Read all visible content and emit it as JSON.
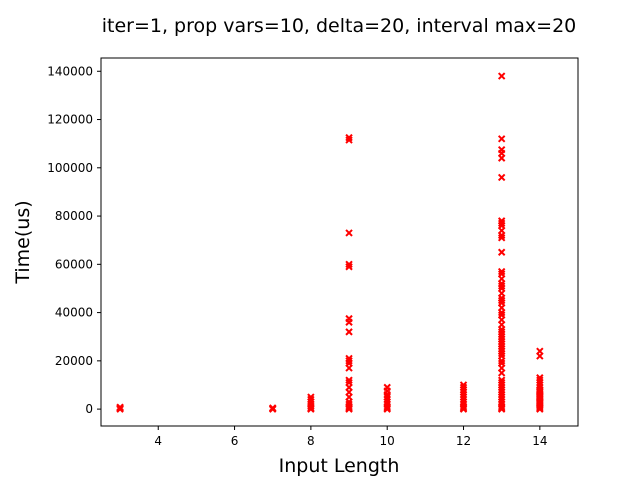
{
  "chart_data": {
    "type": "scatter",
    "title": "iter=1, prop vars=10, delta=20, interval max=20",
    "xlabel": "Input Length",
    "ylabel": "Time(us)",
    "xlim": [
      2.5,
      15.0
    ],
    "ylim": [
      -7000,
      145500
    ],
    "xticks": [
      4,
      6,
      8,
      10,
      12,
      14
    ],
    "yticks": [
      0,
      20000,
      40000,
      60000,
      80000,
      100000,
      120000,
      140000
    ],
    "grid": false,
    "marker": "x",
    "marker_color": "#ff0000",
    "series": [
      {
        "points": [
          [
            3,
            0
          ],
          [
            3,
            200
          ],
          [
            3,
            500
          ],
          [
            3,
            800
          ],
          [
            7,
            0
          ],
          [
            7,
            200
          ],
          [
            7,
            500
          ],
          [
            8,
            0
          ],
          [
            8,
            500
          ],
          [
            8,
            1200
          ],
          [
            8,
            2000
          ],
          [
            8,
            3000
          ],
          [
            8,
            4000
          ],
          [
            8,
            5000
          ],
          [
            9,
            0
          ],
          [
            9,
            500
          ],
          [
            9,
            1000
          ],
          [
            9,
            2000
          ],
          [
            9,
            3000
          ],
          [
            9,
            5000
          ],
          [
            9,
            7000
          ],
          [
            9,
            9000
          ],
          [
            9,
            11000
          ],
          [
            9,
            12000
          ],
          [
            9,
            17000
          ],
          [
            9,
            19000
          ],
          [
            9,
            20000
          ],
          [
            9,
            21000
          ],
          [
            9,
            32000
          ],
          [
            9,
            36000
          ],
          [
            9,
            37500
          ],
          [
            9,
            59000
          ],
          [
            9,
            60000
          ],
          [
            9,
            73000
          ],
          [
            9,
            111500
          ],
          [
            9,
            112500
          ],
          [
            10,
            0
          ],
          [
            10,
            500
          ],
          [
            10,
            1000
          ],
          [
            10,
            2000
          ],
          [
            10,
            3000
          ],
          [
            10,
            4000
          ],
          [
            10,
            5000
          ],
          [
            10,
            6000
          ],
          [
            10,
            7500
          ],
          [
            10,
            9000
          ],
          [
            12,
            0
          ],
          [
            12,
            500
          ],
          [
            12,
            1000
          ],
          [
            12,
            2000
          ],
          [
            12,
            3000
          ],
          [
            12,
            4000
          ],
          [
            12,
            5000
          ],
          [
            12,
            6000
          ],
          [
            12,
            7000
          ],
          [
            12,
            8000
          ],
          [
            12,
            9000
          ],
          [
            12,
            10000
          ],
          [
            13,
            0
          ],
          [
            13,
            500
          ],
          [
            13,
            1000
          ],
          [
            13,
            2000
          ],
          [
            13,
            3000
          ],
          [
            13,
            4000
          ],
          [
            13,
            5000
          ],
          [
            13,
            6000
          ],
          [
            13,
            7000
          ],
          [
            13,
            8000
          ],
          [
            13,
            9000
          ],
          [
            13,
            10000
          ],
          [
            13,
            11000
          ],
          [
            13,
            12000
          ],
          [
            13,
            15000
          ],
          [
            13,
            17000
          ],
          [
            13,
            19000
          ],
          [
            13,
            20000
          ],
          [
            13,
            22000
          ],
          [
            13,
            23000
          ],
          [
            13,
            24000
          ],
          [
            13,
            25000
          ],
          [
            13,
            26000
          ],
          [
            13,
            27000
          ],
          [
            13,
            28000
          ],
          [
            13,
            29000
          ],
          [
            13,
            30000
          ],
          [
            13,
            31000
          ],
          [
            13,
            32000
          ],
          [
            13,
            33000
          ],
          [
            13,
            35000
          ],
          [
            13,
            37000
          ],
          [
            13,
            39000
          ],
          [
            13,
            40000
          ],
          [
            13,
            42000
          ],
          [
            13,
            44000
          ],
          [
            13,
            45000
          ],
          [
            13,
            46000
          ],
          [
            13,
            48000
          ],
          [
            13,
            50000
          ],
          [
            13,
            51000
          ],
          [
            13,
            52000
          ],
          [
            13,
            54000
          ],
          [
            13,
            56000
          ],
          [
            13,
            57000
          ],
          [
            13,
            65000
          ],
          [
            13,
            71000
          ],
          [
            13,
            72000
          ],
          [
            13,
            74000
          ],
          [
            13,
            76000
          ],
          [
            13,
            77000
          ],
          [
            13,
            78000
          ],
          [
            13,
            96000
          ],
          [
            13,
            104000
          ],
          [
            13,
            106000
          ],
          [
            13,
            107500
          ],
          [
            13,
            112000
          ],
          [
            13,
            138000
          ],
          [
            14,
            0
          ],
          [
            14,
            500
          ],
          [
            14,
            1000
          ],
          [
            14,
            1500
          ],
          [
            14,
            2000
          ],
          [
            14,
            2500
          ],
          [
            14,
            3000
          ],
          [
            14,
            3500
          ],
          [
            14,
            4000
          ],
          [
            14,
            4500
          ],
          [
            14,
            5000
          ],
          [
            14,
            5500
          ],
          [
            14,
            6000
          ],
          [
            14,
            6500
          ],
          [
            14,
            7000
          ],
          [
            14,
            7500
          ],
          [
            14,
            8000
          ],
          [
            14,
            9000
          ],
          [
            14,
            10000
          ],
          [
            14,
            11000
          ],
          [
            14,
            12000
          ],
          [
            14,
            13000
          ],
          [
            14,
            22000
          ],
          [
            14,
            24000
          ]
        ]
      }
    ]
  }
}
